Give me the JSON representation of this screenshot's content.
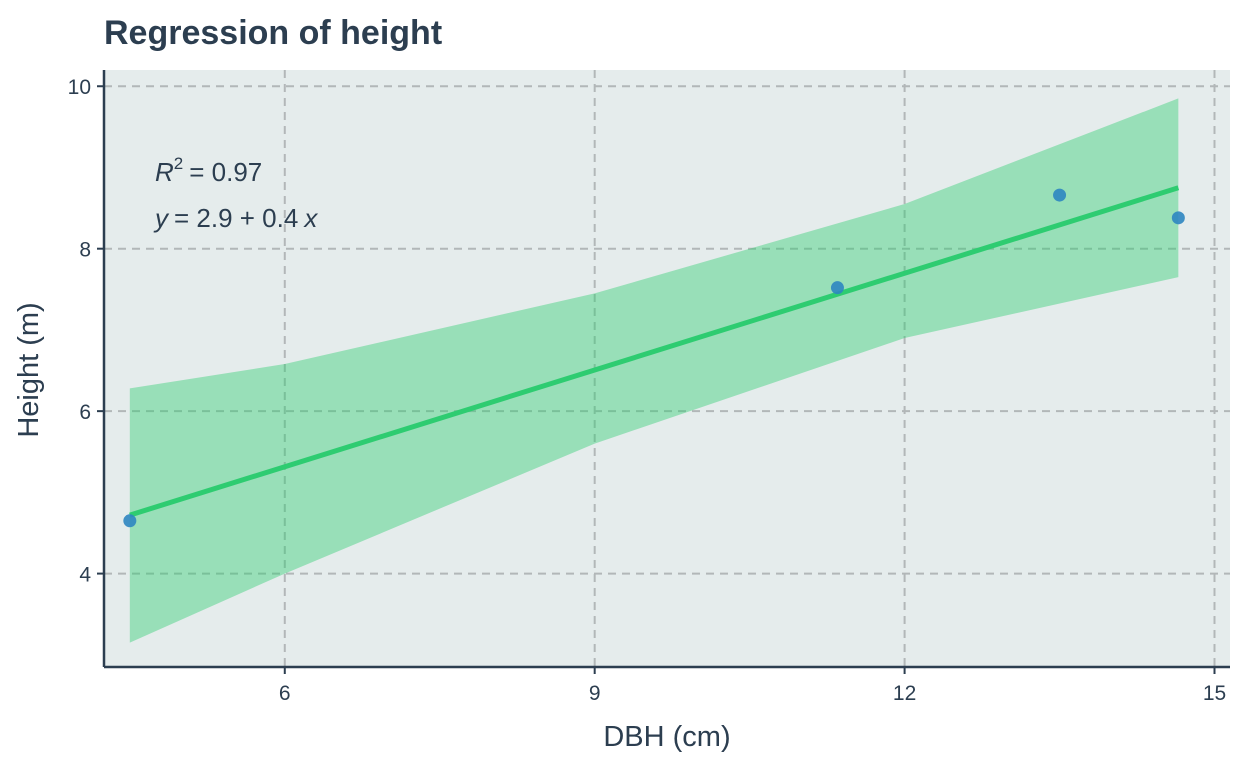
{
  "chart_data": {
    "type": "scatter",
    "title": "Regression of height",
    "xlabel": "DBH (cm)",
    "ylabel": "Height (m)",
    "xlim": [
      4.25,
      15.15
    ],
    "ylim": [
      2.85,
      10.2
    ],
    "x_ticks": [
      6,
      9,
      12,
      15
    ],
    "y_ticks": [
      4,
      6,
      8,
      10
    ],
    "grid": true,
    "points": [
      {
        "x": 4.5,
        "y": 4.65
      },
      {
        "x": 11.35,
        "y": 7.52
      },
      {
        "x": 13.5,
        "y": 8.66
      },
      {
        "x": 14.65,
        "y": 8.38
      }
    ],
    "regression": {
      "intercept": 2.9,
      "slope": 0.4,
      "r_squared": "0.97",
      "fit_start": {
        "x": 4.5,
        "y": 4.72
      },
      "fit_end": {
        "x": 14.65,
        "y": 8.75
      },
      "band": [
        {
          "x": 4.5,
          "lower": 3.15,
          "upper": 6.28
        },
        {
          "x": 6.0,
          "lower": 4.0,
          "upper": 6.58
        },
        {
          "x": 9.0,
          "lower": 5.6,
          "upper": 7.45
        },
        {
          "x": 12.0,
          "lower": 6.9,
          "upper": 8.55
        },
        {
          "x": 14.65,
          "lower": 7.65,
          "upper": 9.85
        }
      ]
    },
    "annotation": {
      "r2_label": "R",
      "r2_exponent": "2",
      "r2_value": "= 0.97",
      "eq_y": "y",
      "eq_body": "= 2.9 + 0.4",
      "eq_x": "x"
    },
    "colors": {
      "panel": "#e5ecec",
      "grid": "#b2b7b8",
      "axis": "#2c3e50",
      "line": "#2ecc71",
      "band": "#2ecc71",
      "point": "#2e86c1",
      "text": "#2c3e50"
    }
  }
}
